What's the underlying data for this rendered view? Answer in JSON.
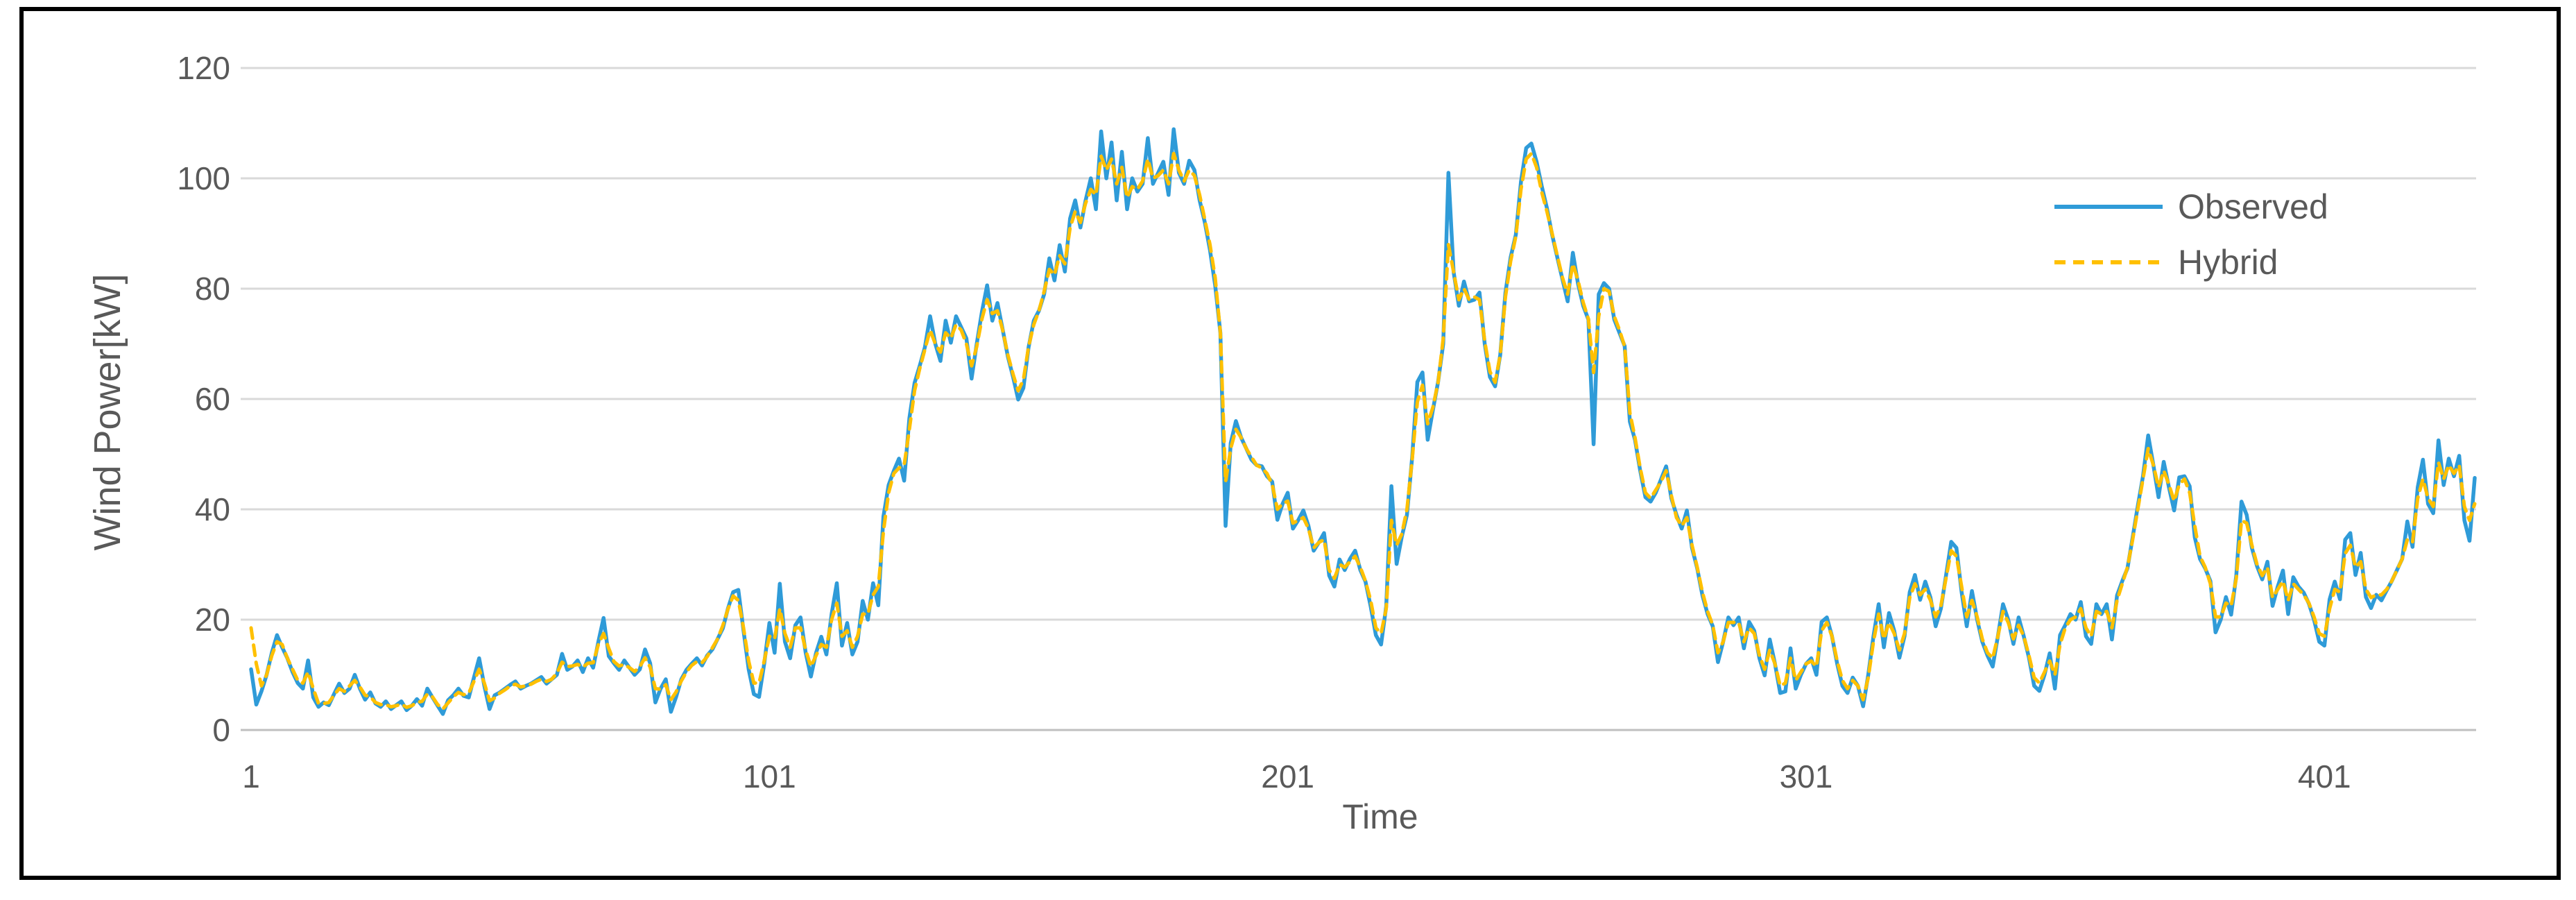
{
  "chart_data": {
    "type": "line",
    "title": "",
    "xlabel": "Time",
    "ylabel": "Wind Power[kW]",
    "x_start": 1,
    "x_ticks": [
      1,
      101,
      201,
      301,
      401
    ],
    "y_ticks": [
      0,
      20,
      40,
      60,
      80,
      100,
      120
    ],
    "ylim": [
      0,
      120
    ],
    "xlim": [
      1,
      430
    ],
    "grid": "horizontal",
    "legend_position": "inside-top-right",
    "colors": {
      "grid": "#D9D9D9",
      "axis_line": "#BFBFBF",
      "text": "#595959",
      "background": "#FFFFFF",
      "frame_border": "#000000"
    },
    "series": [
      {
        "name": "Observed",
        "color": "#2F9BD8",
        "style": "solid",
        "values": [
          11,
          4.6,
          7,
          10,
          14,
          17.2,
          15,
          13,
          10.5,
          8.5,
          7.5,
          12.6,
          5.9,
          4.2,
          5,
          4.5,
          6.5,
          8.4,
          6.7,
          7.5,
          10,
          7.5,
          5.5,
          6.8,
          4.8,
          4.2,
          5.2,
          3.8,
          4.5,
          5.2,
          3.6,
          4.4,
          5.6,
          4.4,
          7.5,
          5.9,
          4.4,
          2.9,
          5.4,
          6.3,
          7.5,
          6.2,
          5.9,
          9.5,
          13,
          8,
          3.8,
          6.3,
          6.8,
          7.5,
          8.2,
          8.8,
          7.5,
          8,
          8.4,
          9,
          9.6,
          8.4,
          9.2,
          10,
          13.8,
          10.9,
          11.5,
          12.6,
          10.5,
          13,
          11.3,
          16,
          20.3,
          13.4,
          12.1,
          10.9,
          12.6,
          11.3,
          10,
          11,
          14.6,
          12.1,
          5,
          7.5,
          9.2,
          3.3,
          6,
          9.2,
          10.9,
          12,
          13,
          11.7,
          13.5,
          14.6,
          16.5,
          18.4,
          22,
          25,
          25.4,
          18,
          11,
          6.5,
          6,
          12,
          19.4,
          14,
          26.5,
          16,
          13,
          19,
          20.4,
          14,
          9.7,
          14,
          16.9,
          13.7,
          21,
          26.6,
          15.3,
          19.4,
          13.7,
          16,
          23.4,
          20,
          26.6,
          22.6,
          38.7,
          44.4,
          47,
          49.2,
          45.2,
          56.5,
          62.9,
          66,
          69.4,
          75,
          70,
          66.9,
          74.2,
          70.2,
          75,
          73,
          71,
          63.7,
          70,
          75.8,
          80.6,
          74.2,
          77.4,
          72.6,
          67.7,
          64,
          59.9,
          62,
          69.4,
          74.2,
          76,
          79,
          85.5,
          81.5,
          87.9,
          83.1,
          92.7,
          96,
          91.1,
          96,
          100,
          94.4,
          108.5,
          100,
          106.5,
          96,
          104.8,
          94.4,
          100,
          97.6,
          99,
          107.3,
          99,
          101,
          103,
          97,
          108.9,
          101,
          99,
          103.2,
          101.5,
          96,
          92,
          87,
          80.6,
          72,
          37,
          52,
          56,
          53,
          51,
          49,
          48,
          47.8,
          46,
          45,
          38.1,
          41,
          43,
          36.5,
          38,
          39.8,
          37,
          32.5,
          34,
          35.7,
          28,
          26,
          30.9,
          29,
          31,
          32.5,
          29,
          26.9,
          22.4,
          17.2,
          15.5,
          22.4,
          44.2,
          30.1,
          35,
          39,
          49.4,
          63.1,
          64.8,
          52.6,
          58,
          63.1,
          70,
          101,
          83,
          76.9,
          81.3,
          77.7,
          78,
          79.3,
          70,
          64,
          62.3,
          68,
          79.3,
          85.7,
          89.8,
          99.4,
          105.5,
          106.3,
          103,
          98.6,
          94.6,
          89.8,
          85.7,
          81.7,
          77.7,
          86.5,
          80.9,
          76.9,
          74.4,
          51.8,
          79,
          81,
          80,
          74.4,
          72,
          69.6,
          55.9,
          52.6,
          47,
          42.2,
          41.4,
          43,
          45.4,
          47.8,
          42,
          39,
          36.5,
          39.8,
          33,
          29.3,
          24.4,
          21,
          18.8,
          12.3,
          16,
          20.4,
          19,
          20.4,
          14.8,
          19.6,
          18,
          13,
          9.9,
          16.4,
          12,
          6.7,
          7,
          14.8,
          7.5,
          10,
          12,
          13,
          10,
          19.6,
          20.4,
          17,
          12,
          8,
          6.7,
          9.5,
          8,
          4.3,
          10,
          17,
          22.8,
          15,
          21.2,
          18,
          13.1,
          17,
          25,
          28.1,
          23.6,
          26.9,
          24,
          18.8,
          22,
          28,
          34.1,
          33,
          25,
          18.8,
          25.2,
          20,
          16,
          13.5,
          11.5,
          17,
          22.8,
          20,
          15.6,
          20.4,
          17,
          13.1,
          8,
          7.1,
          10,
          13.9,
          7.5,
          17.2,
          19,
          21,
          20,
          23.2,
          17,
          15.6,
          22.8,
          21,
          22.8,
          16.4,
          24.4,
          27,
          29.3,
          34.9,
          40.6,
          46,
          53.4,
          48,
          42.2,
          48.6,
          44,
          39.8,
          45.8,
          46,
          44.2,
          34.9,
          31,
          29.3,
          27,
          17.7,
          20,
          24.1,
          20.9,
          28,
          41.4,
          39,
          33,
          29.7,
          27.3,
          30.5,
          22.5,
          26,
          28.9,
          21,
          27.7,
          26,
          24.9,
          22.9,
          20,
          16,
          15.3,
          23.7,
          26.9,
          23.7,
          34.5,
          35.7,
          28.1,
          32.1,
          24.1,
          22.1,
          24.5,
          23.5,
          25.3,
          27,
          29,
          31,
          37.8,
          33.2,
          44,
          49,
          41,
          39.3,
          52.5,
          44.4,
          49.2,
          46,
          49.7,
          38,
          34.3,
          45.7
        ]
      },
      {
        "name": "Hybrid",
        "color": "#FFC000",
        "style": "dashed",
        "values": [
          18.5,
          12,
          8,
          10,
          13.5,
          16,
          15.5,
          13,
          11,
          9,
          8.5,
          10.5,
          7.5,
          4.8,
          4.8,
          5,
          6.3,
          7.5,
          7,
          8,
          9,
          7.8,
          6.3,
          6,
          5,
          4.6,
          4.6,
          4.2,
          4.4,
          4.7,
          4.1,
          4.4,
          5,
          5.2,
          6.5,
          6,
          4.6,
          3.8,
          4.9,
          6,
          6.8,
          6.4,
          6.7,
          8.8,
          11,
          8.5,
          5.3,
          5.8,
          6.7,
          7.3,
          8,
          8.3,
          7.8,
          8,
          8.3,
          8.8,
          9.2,
          8.8,
          9.2,
          10.3,
          12.3,
          11.5,
          11.6,
          11.9,
          11.4,
          12.1,
          12.2,
          15.5,
          17.5,
          14.8,
          12.4,
          11.6,
          11.9,
          11.3,
          10.6,
          11.5,
          13.1,
          11.4,
          7.5,
          7.4,
          8.2,
          5.5,
          6.9,
          8.9,
          10.5,
          11.7,
          12.4,
          12.2,
          13.3,
          14.9,
          16.5,
          18.9,
          21.9,
          24.3,
          23.5,
          18.5,
          12.5,
          8.5,
          8.5,
          12.5,
          17,
          16.5,
          22,
          17.5,
          15,
          18.5,
          18.5,
          14.5,
          11.5,
          13.5,
          15.5,
          15,
          20,
          23,
          17,
          18,
          15,
          17,
          21,
          21,
          24.5,
          26,
          36,
          43,
          46.5,
          47.5,
          48,
          54.5,
          61.5,
          65.5,
          69,
          72.5,
          70,
          68.5,
          72,
          71,
          73.5,
          72.5,
          70,
          66,
          69.5,
          74.5,
          78,
          75.5,
          76,
          72.5,
          68,
          64.5,
          61.5,
          63.5,
          69.5,
          73.5,
          76,
          79.5,
          83.5,
          82.5,
          86,
          84.5,
          91,
          94,
          92,
          95.5,
          98,
          97,
          104,
          101.5,
          103.5,
          99,
          102,
          96.5,
          98.5,
          98,
          99.5,
          103.5,
          100,
          100.5,
          101.5,
          99,
          104.5,
          101.5,
          99.5,
          101.5,
          100.5,
          97,
          92.5,
          88,
          82,
          72,
          45,
          51,
          54.5,
          53,
          51,
          49.5,
          48,
          47.5,
          46.5,
          44.5,
          40,
          41,
          41.5,
          37.5,
          38,
          38.5,
          36.5,
          33,
          34,
          34.5,
          29,
          27.5,
          30,
          29.5,
          30.5,
          31.5,
          29.5,
          27,
          23.5,
          18.5,
          17.5,
          22,
          38,
          33.5,
          35.5,
          40,
          49,
          59.5,
          62.5,
          55.5,
          58.5,
          63,
          71,
          88,
          83,
          78,
          80,
          78,
          78.5,
          78,
          70.5,
          65,
          63,
          68,
          78.5,
          85,
          89.5,
          98,
          103.5,
          104.5,
          102,
          97.5,
          94,
          90,
          86,
          82,
          79,
          84.5,
          81.5,
          77.5,
          74.5,
          64.8,
          75,
          80,
          79.5,
          75,
          72.5,
          69.5,
          57.5,
          53,
          47.5,
          43,
          42,
          43.5,
          45,
          47,
          42.5,
          38.5,
          37,
          38.5,
          33.5,
          29.5,
          25,
          21.5,
          19,
          14,
          16,
          19.5,
          19.5,
          19.5,
          16,
          18.5,
          17.5,
          13.5,
          11,
          14.5,
          12,
          8,
          8.5,
          13,
          9,
          10.5,
          12,
          12.5,
          11.5,
          18,
          19.5,
          17,
          12.5,
          9,
          7.5,
          9,
          8,
          5.5,
          9.5,
          16,
          21,
          16.5,
          19.5,
          17.5,
          14.5,
          17.5,
          24,
          26.5,
          24.5,
          25.5,
          23.5,
          20.5,
          22.5,
          27.5,
          32.5,
          31.5,
          26,
          20.5,
          23.5,
          20.5,
          16.5,
          14,
          13,
          17,
          21.5,
          19.5,
          16.5,
          19,
          17,
          13.5,
          9.5,
          8.5,
          10.5,
          12.5,
          10,
          15.5,
          18.5,
          20,
          20.5,
          22,
          18.5,
          17,
          21.5,
          21,
          21.5,
          18.5,
          23.5,
          26.5,
          29.5,
          34.5,
          40,
          45.5,
          51,
          48,
          44,
          47,
          44.5,
          41.5,
          44.5,
          45.5,
          43,
          37,
          31.5,
          29.5,
          26.5,
          20.5,
          20.5,
          23,
          22.5,
          27.5,
          38,
          37.5,
          33.5,
          30,
          28,
          29.5,
          24,
          25.5,
          27,
          23.5,
          26.5,
          25.5,
          24.5,
          23,
          20.5,
          17.5,
          17,
          22,
          25.5,
          25,
          32,
          33.5,
          29.5,
          30.5,
          25.5,
          24,
          24.5,
          24.5,
          25.5,
          27,
          29,
          31,
          34.5,
          34,
          42,
          45.5,
          42,
          40.5,
          48.5,
          45.5,
          48,
          46.5,
          48,
          40.5,
          38,
          41
        ]
      }
    ]
  }
}
